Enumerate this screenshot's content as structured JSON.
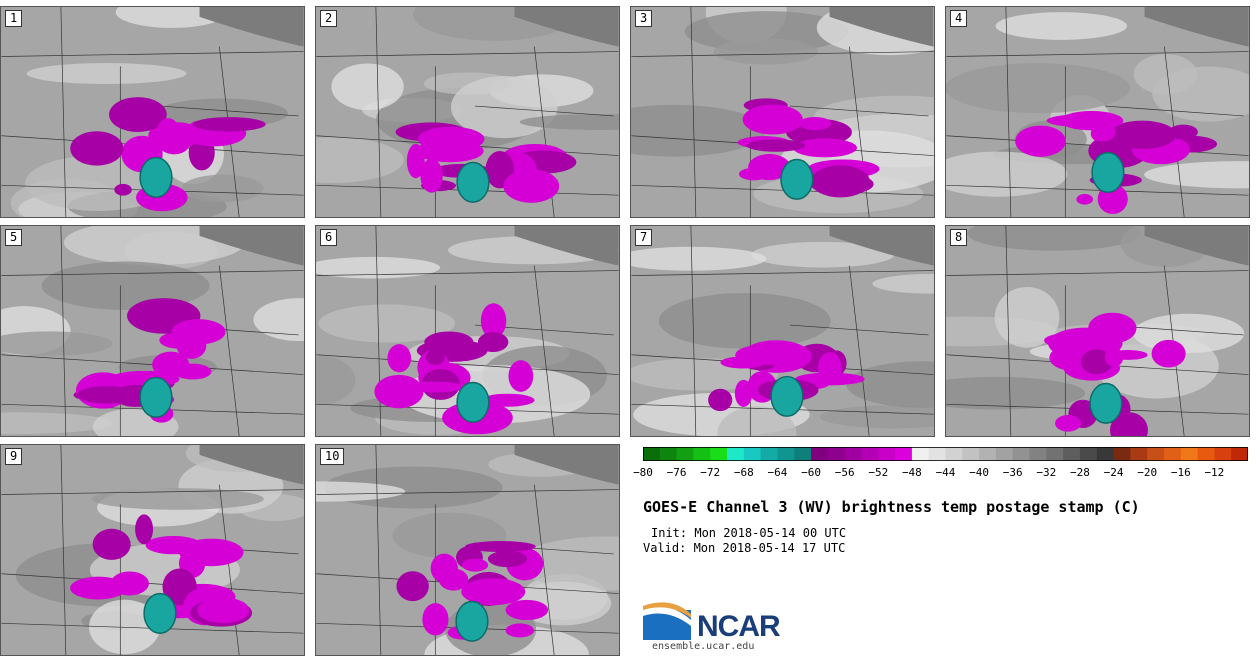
{
  "figure": {
    "title": "GOES-E Channel 3 (WV) brightness temp postage stamp (C)",
    "init": "Init: Mon 2018-05-14 00 UTC",
    "valid": "Valid: Mon 2018-05-14 17 UTC"
  },
  "panels": [
    {
      "label": "1"
    },
    {
      "label": "2"
    },
    {
      "label": "3"
    },
    {
      "label": "4"
    },
    {
      "label": "5"
    },
    {
      "label": "6"
    },
    {
      "label": "7"
    },
    {
      "label": "8"
    },
    {
      "label": "9"
    },
    {
      "label": "10"
    }
  ],
  "colorbar": {
    "ticks": [
      "−80",
      "−76",
      "−72",
      "−68",
      "−64",
      "−60",
      "−56",
      "−52",
      "−48",
      "−44",
      "−40",
      "−36",
      "−32",
      "−28",
      "−24",
      "−20",
      "−16",
      "−12"
    ],
    "colors": [
      "#0a6e0a",
      "#0e860e",
      "#12a012",
      "#14c014",
      "#18dd18",
      "#1ee8c8",
      "#19c8c0",
      "#14aaa6",
      "#119590",
      "#0f7f7c",
      "#800080",
      "#8e008e",
      "#a000a0",
      "#b400b4",
      "#c800c8",
      "#dc00dc",
      "#f0f0f0",
      "#e2e2e2",
      "#d2d2d2",
      "#c2c2c2",
      "#b2b2b2",
      "#a2a2a2",
      "#929292",
      "#828282",
      "#727272",
      "#5e5e5e",
      "#4a4a4a",
      "#383838",
      "#7a2a10",
      "#a83a14",
      "#c85018",
      "#e06018",
      "#f07818",
      "#e85a10",
      "#d84010",
      "#c02808"
    ]
  },
  "logo": {
    "name": "NCAR",
    "url": "ensemble.ucar.edu"
  }
}
